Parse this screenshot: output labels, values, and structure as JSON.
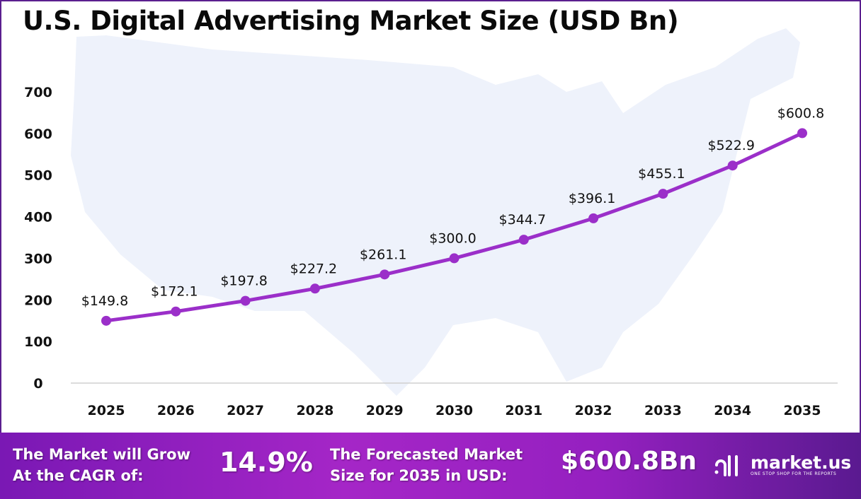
{
  "chart_data": {
    "type": "line",
    "title": "U.S. Digital Advertising Market Size (USD Bn)",
    "categories": [
      "2025",
      "2026",
      "2027",
      "2028",
      "2029",
      "2030",
      "2031",
      "2032",
      "2033",
      "2034",
      "2035"
    ],
    "values": [
      149.8,
      172.1,
      197.8,
      227.2,
      261.1,
      300.0,
      344.7,
      396.1,
      455.1,
      522.9,
      600.8
    ],
    "data_labels": [
      "$149.8",
      "$172.1",
      "$197.8",
      "$227.2",
      "$261.1",
      "$300.0",
      "$344.7",
      "$396.1",
      "$455.1",
      "$522.9",
      "$600.8"
    ],
    "yticks": [
      "0",
      "100",
      "200",
      "300",
      "400",
      "500",
      "600",
      "700"
    ],
    "ylim": [
      0,
      700
    ],
    "grid": false,
    "line_color": "#9b2fc9"
  },
  "footer": {
    "cagr_label": "The Market will Grow At the CAGR of:",
    "cagr_value": "14.9%",
    "forecast_label": "The Forecasted Market Size for 2035 in USD:",
    "forecast_value": "$600.8Bn",
    "logo_name": "market.us",
    "logo_tagline": "ONE STOP SHOP FOR THE REPORTS"
  }
}
